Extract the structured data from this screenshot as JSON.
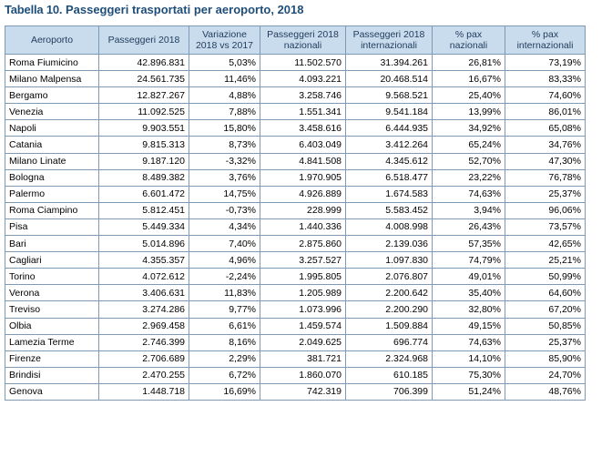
{
  "title": {
    "number": "Tabella 10.",
    "text": "Passeggeri trasportati per aeroporto, 2018"
  },
  "headers": [
    "Aeroporto",
    "Passeggeri 2018",
    "Variazione 2018 vs 2017",
    "Passeggeri 2018 nazionali",
    "Passeggeri 2018 internazionali",
    "% pax nazionali",
    "% pax internazionali"
  ],
  "rows": [
    [
      "Roma Fiumicino",
      "42.896.831",
      "5,03%",
      "11.502.570",
      "31.394.261",
      "26,81%",
      "73,19%"
    ],
    [
      "Milano Malpensa",
      "24.561.735",
      "11,46%",
      "4.093.221",
      "20.468.514",
      "16,67%",
      "83,33%"
    ],
    [
      "Bergamo",
      "12.827.267",
      "4,88%",
      "3.258.746",
      "9.568.521",
      "25,40%",
      "74,60%"
    ],
    [
      "Venezia",
      "11.092.525",
      "7,88%",
      "1.551.341",
      "9.541.184",
      "13,99%",
      "86,01%"
    ],
    [
      "Napoli",
      "9.903.551",
      "15,80%",
      "3.458.616",
      "6.444.935",
      "34,92%",
      "65,08%"
    ],
    [
      "Catania",
      "9.815.313",
      "8,73%",
      "6.403.049",
      "3.412.264",
      "65,24%",
      "34,76%"
    ],
    [
      "Milano Linate",
      "9.187.120",
      "-3,32%",
      "4.841.508",
      "4.345.612",
      "52,70%",
      "47,30%"
    ],
    [
      "Bologna",
      "8.489.382",
      "3,76%",
      "1.970.905",
      "6.518.477",
      "23,22%",
      "76,78%"
    ],
    [
      "Palermo",
      "6.601.472",
      "14,75%",
      "4.926.889",
      "1.674.583",
      "74,63%",
      "25,37%"
    ],
    [
      "Roma Ciampino",
      "5.812.451",
      "-0,73%",
      "228.999",
      "5.583.452",
      "3,94%",
      "96,06%"
    ],
    [
      "Pisa",
      "5.449.334",
      "4,34%",
      "1.440.336",
      "4.008.998",
      "26,43%",
      "73,57%"
    ],
    [
      "Bari",
      "5.014.896",
      "7,40%",
      "2.875.860",
      "2.139.036",
      "57,35%",
      "42,65%"
    ],
    [
      "Cagliari",
      "4.355.357",
      "4,96%",
      "3.257.527",
      "1.097.830",
      "74,79%",
      "25,21%"
    ],
    [
      "Torino",
      "4.072.612",
      "-2,24%",
      "1.995.805",
      "2.076.807",
      "49,01%",
      "50,99%"
    ],
    [
      "Verona",
      "3.406.631",
      "11,83%",
      "1.205.989",
      "2.200.642",
      "35,40%",
      "64,60%"
    ],
    [
      "Treviso",
      "3.274.286",
      "9,77%",
      "1.073.996",
      "2.200.290",
      "32,80%",
      "67,20%"
    ],
    [
      "Olbia",
      "2.969.458",
      "6,61%",
      "1.459.574",
      "1.509.884",
      "49,15%",
      "50,85%"
    ],
    [
      "Lamezia Terme",
      "2.746.399",
      "8,16%",
      "2.049.625",
      "696.774",
      "74,63%",
      "25,37%"
    ],
    [
      "Firenze",
      "2.706.689",
      "2,29%",
      "381.721",
      "2.324.968",
      "14,10%",
      "85,90%"
    ],
    [
      "Brindisi",
      "2.470.255",
      "6,72%",
      "1.860.070",
      "610.185",
      "75,30%",
      "24,70%"
    ],
    [
      "Genova",
      "1.448.718",
      "16,69%",
      "742.319",
      "706.399",
      "51,24%",
      "48,76%"
    ]
  ],
  "colors": {
    "title": "#1f4e79",
    "header_bg": "#c9dcee",
    "border": "#7f9ab7"
  }
}
